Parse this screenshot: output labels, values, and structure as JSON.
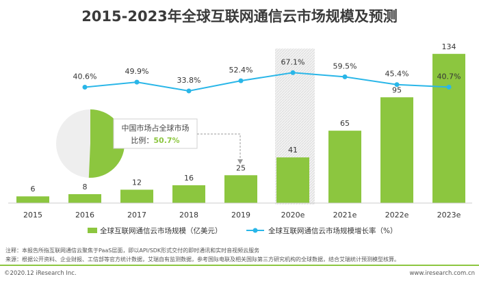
{
  "title": "2015-2023年全球互联网通信云市场规模及预测",
  "chart_data": {
    "type": "bar",
    "categories": [
      "2015",
      "2016",
      "2017",
      "2018",
      "2019",
      "2020e",
      "2021e",
      "2022e",
      "2023e"
    ],
    "series": [
      {
        "name": "全球互联网通信云市场规模（亿美元）",
        "type": "bar",
        "values": [
          6,
          8,
          12,
          16,
          25,
          41,
          65,
          95,
          134
        ]
      },
      {
        "name": "全球互联网通信云市场规模增长率（%）",
        "type": "line",
        "values": [
          null,
          40.6,
          49.9,
          33.8,
          52.4,
          67.1,
          59.5,
          45.4,
          40.7
        ],
        "labels": [
          "",
          "40.6%",
          "49.9%",
          "33.8%",
          "52.4%",
          "67.1%",
          "59.5%",
          "45.4%",
          "40.7%"
        ]
      }
    ],
    "highlight_category": "2020e",
    "ylim": [
      0,
      140
    ],
    "rate_ylim": [
      25,
      75
    ]
  },
  "callout": {
    "line1": "中国市场占全球市场",
    "line2_prefix": "比例：",
    "line2_value": "50.7%",
    "pie_share": 50.7
  },
  "legend": {
    "bar_label": "全球互联网通信云市场规模（亿美元）",
    "line_label": "全球互联网通信云市场规模增长率（%）"
  },
  "notes": {
    "note": "注释：本报告所指互联网通信云聚焦于PaaS层面，即以API/SDK形式交付的即时通讯和实时音视频云服务",
    "source": "来源：根据公开资料、企业财报、工信部等官方统计数据，艾瑞自有监测数据，参考国际电联及相关国际第三方研究机构的全球数据，结合艾瑞统计预测模型核算。"
  },
  "footer": {
    "copyright": "©2020.12 iResearch Inc.",
    "website": "www.iresearch.com.cn"
  },
  "colors": {
    "bar": "#8cc63f",
    "line": "#29b6e8",
    "pie_rest": "#eeeeee",
    "highlight": "#e2e2e2"
  }
}
